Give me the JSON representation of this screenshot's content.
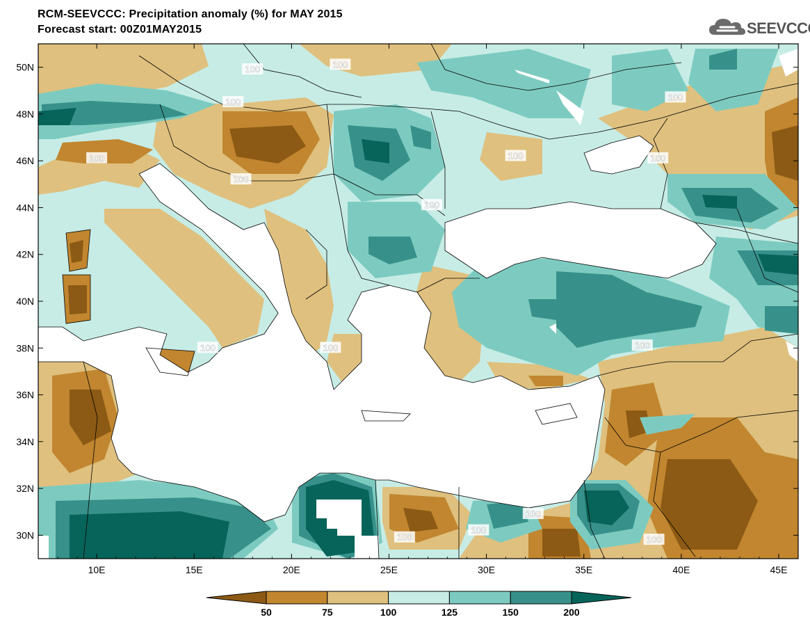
{
  "header": {
    "title_line1": "RCM-SEEVCCC: Precipitation anomaly (%) for MAY 2015",
    "title_line2": "Forecast start: 00Z01MAY2015",
    "logo_text": "SEEVCCC",
    "logo_icon": "cloud-icon"
  },
  "map": {
    "lon_range": [
      7,
      46
    ],
    "lat_range": [
      29,
      51
    ],
    "lon_ticks": [
      "10E",
      "15E",
      "20E",
      "25E",
      "30E",
      "35E",
      "40E",
      "45E"
    ],
    "lat_ticks": [
      "50N",
      "48N",
      "46N",
      "44N",
      "42N",
      "40N",
      "38N",
      "36N",
      "34N",
      "32N",
      "30N"
    ],
    "contour_labels": [
      {
        "text": "100",
        "lon": 18.0,
        "lat": 49.9
      },
      {
        "text": "100",
        "lon": 22.5,
        "lat": 50.1
      },
      {
        "text": "100",
        "lon": 17.0,
        "lat": 48.5
      },
      {
        "text": "100",
        "lon": 10.0,
        "lat": 46.1
      },
      {
        "text": "100",
        "lon": 17.4,
        "lat": 45.2
      },
      {
        "text": "100",
        "lon": 31.5,
        "lat": 46.2
      },
      {
        "text": "100",
        "lon": 39.7,
        "lat": 48.7
      },
      {
        "text": "100",
        "lon": 38.8,
        "lat": 46.1
      },
      {
        "text": "100",
        "lon": 27.2,
        "lat": 44.1
      },
      {
        "text": "100",
        "lon": 15.7,
        "lat": 38.0
      },
      {
        "text": "100",
        "lon": 22.0,
        "lat": 38.0
      },
      {
        "text": "100",
        "lon": 38.0,
        "lat": 38.1
      },
      {
        "text": "100",
        "lon": 25.8,
        "lat": 29.9
      },
      {
        "text": "100",
        "lon": 29.6,
        "lat": 30.2
      },
      {
        "text": "100",
        "lon": 32.4,
        "lat": 30.9
      },
      {
        "text": "100",
        "lon": 38.6,
        "lat": 29.8
      }
    ]
  },
  "colorbar": {
    "colors": [
      "#8c5a14",
      "#c1862f",
      "#dfc07e",
      "#c7ece6",
      "#7dcbc0",
      "#37918a",
      "#06645a"
    ],
    "labels": [
      "50",
      "75",
      "100",
      "125",
      "150",
      "200"
    ]
  }
}
